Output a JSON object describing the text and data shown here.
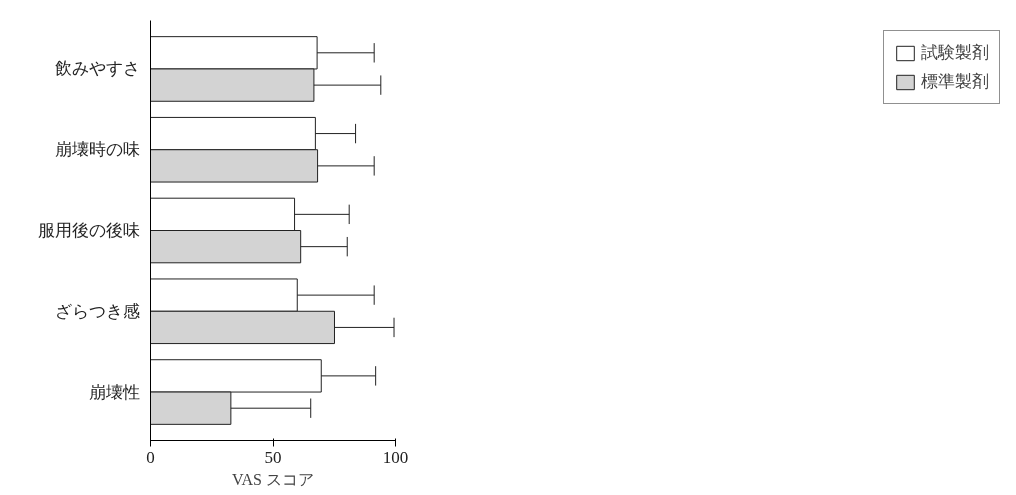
{
  "chart_data": {
    "type": "bar",
    "orientation": "horizontal",
    "xlabel": "VAS スコア",
    "categories": [
      "飲みやすさ",
      "崩壊時の味",
      "服用後の後味",
      "ざらつき感",
      "崩壊性"
    ],
    "series": [
      {
        "name": "試験製剤",
        "color": "#ffffff",
        "values": [
          68.0,
          67.3,
          58.8,
          59.9,
          69.7
        ],
        "errors": [
          [
            68.0,
            91.3
          ],
          [
            67.3,
            83.7
          ],
          [
            58.8,
            81.1
          ],
          [
            59.9,
            91.3
          ],
          [
            69.7,
            91.9
          ]
        ]
      },
      {
        "name": "標準製剤",
        "color": "#d3d3d3",
        "values": [
          66.7,
          68.2,
          61.3,
          75.1,
          32.8
        ],
        "errors": [
          [
            66.7,
            94.0
          ],
          [
            68.2,
            91.3
          ],
          [
            61.3,
            80.3
          ],
          [
            75.1,
            99.4
          ],
          [
            32.8,
            65.4
          ]
        ]
      }
    ],
    "xlim": [
      0,
      100
    ],
    "xticks": [
      0,
      50,
      100
    ],
    "grid": false,
    "legend": "right"
  }
}
